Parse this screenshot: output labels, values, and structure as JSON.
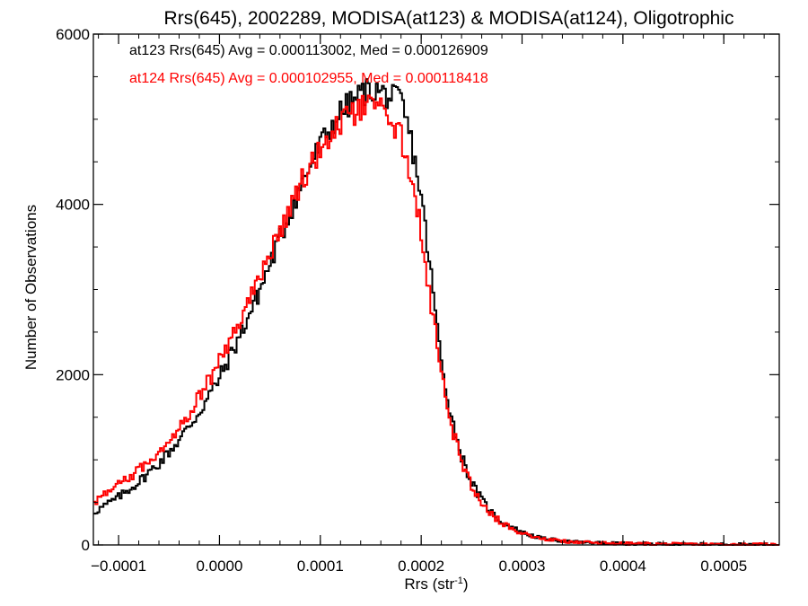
{
  "chart_data": {
    "type": "line",
    "title": "Rrs(645), 2002289, MODISA(at123) & MODISA(at124), Oligotrophic",
    "xlabel": "Rrs (str",
    "xlabel_sup": "-1",
    "xlabel_close": ")",
    "ylabel": "Number of Observations",
    "xlim": [
      -0.000125,
      0.000555
    ],
    "ylim": [
      0,
      6000
    ],
    "x_ticks": [
      -0.0001,
      0.0,
      0.0001,
      0.0002,
      0.0003,
      0.0004,
      0.0005
    ],
    "x_tick_labels": [
      "−0.0001",
      "0.0000",
      "0.0001",
      "0.0002",
      "0.0003",
      "0.0004",
      "0.0005"
    ],
    "y_ticks": [
      0,
      2000,
      4000,
      6000
    ],
    "y_tick_labels": [
      "0",
      "2000",
      "4000",
      "6000"
    ],
    "grid": false,
    "legend_position": "top-left",
    "series": [
      {
        "name": "at123",
        "label": "at123 Rrs(645) Avg = 0.000113002, Med = 0.000126909",
        "color": "#000000",
        "points": [
          [
            -0.000125,
            380
          ],
          [
            -0.0001,
            560
          ],
          [
            -8e-05,
            740
          ],
          [
            -6e-05,
            960
          ],
          [
            -4e-05,
            1230
          ],
          [
            -2e-05,
            1560
          ],
          [
            0.0,
            1960
          ],
          [
            2e-05,
            2450
          ],
          [
            4e-05,
            2990
          ],
          [
            6e-05,
            3600
          ],
          [
            8e-05,
            4200
          ],
          [
            0.0001,
            4700
          ],
          [
            0.00012,
            5080
          ],
          [
            0.00014,
            5300
          ],
          [
            0.00015,
            5350
          ],
          [
            0.00016,
            5320
          ],
          [
            0.00017,
            5250
          ],
          [
            0.00018,
            5220
          ],
          [
            0.00019,
            4750
          ],
          [
            0.0002,
            4100
          ],
          [
            0.00021,
            3150
          ],
          [
            0.00022,
            2150
          ],
          [
            0.00023,
            1500
          ],
          [
            0.00024,
            1050
          ],
          [
            0.00025,
            730
          ],
          [
            0.00026,
            530
          ],
          [
            0.00027,
            380
          ],
          [
            0.00028,
            270
          ],
          [
            0.0003,
            145
          ],
          [
            0.00032,
            75
          ],
          [
            0.00035,
            35
          ],
          [
            0.0004,
            15
          ],
          [
            0.00045,
            8
          ],
          [
            0.0005,
            5
          ],
          [
            0.000555,
            3
          ]
        ]
      },
      {
        "name": "at124",
        "label": "at124 Rrs(645) Avg = 0.000102955, Med = 0.000118418",
        "color": "#ff0000",
        "points": [
          [
            -0.000125,
            500
          ],
          [
            -0.0001,
            700
          ],
          [
            -8e-05,
            880
          ],
          [
            -6e-05,
            1100
          ],
          [
            -4e-05,
            1390
          ],
          [
            -2e-05,
            1740
          ],
          [
            0.0,
            2150
          ],
          [
            2e-05,
            2620
          ],
          [
            4e-05,
            3150
          ],
          [
            6e-05,
            3700
          ],
          [
            8e-05,
            4230
          ],
          [
            0.0001,
            4650
          ],
          [
            0.00012,
            4950
          ],
          [
            0.00014,
            5110
          ],
          [
            0.00015,
            5150
          ],
          [
            0.00016,
            5110
          ],
          [
            0.00017,
            5020
          ],
          [
            0.00018,
            4790
          ],
          [
            0.00019,
            4350
          ],
          [
            0.0002,
            3680
          ],
          [
            0.00021,
            2820
          ],
          [
            0.00022,
            1980
          ],
          [
            0.00023,
            1400
          ],
          [
            0.00024,
            980
          ],
          [
            0.00025,
            690
          ],
          [
            0.00026,
            500
          ],
          [
            0.00027,
            360
          ],
          [
            0.00028,
            255
          ],
          [
            0.0003,
            140
          ],
          [
            0.00032,
            72
          ],
          [
            0.00035,
            34
          ],
          [
            0.0004,
            15
          ],
          [
            0.00045,
            8
          ],
          [
            0.0005,
            5
          ],
          [
            0.000555,
            3
          ]
        ]
      }
    ]
  }
}
